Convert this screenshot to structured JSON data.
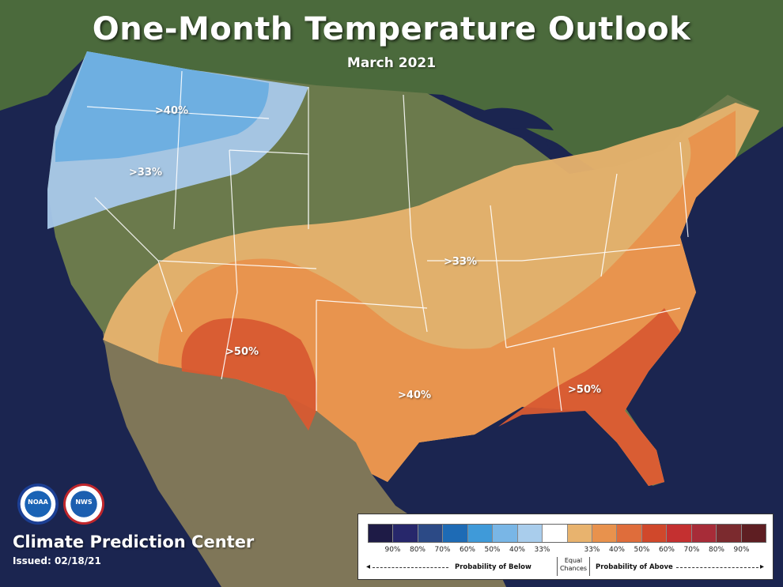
{
  "header": {
    "title": "One-Month Temperature Outlook",
    "subtitle": "March 2021"
  },
  "regions": [
    {
      "id": "below-40",
      "label": ">40%"
    },
    {
      "id": "below-33",
      "label": ">33%"
    },
    {
      "id": "above-33",
      "label": ">33%"
    },
    {
      "id": "above-50-sw",
      "label": ">50%"
    },
    {
      "id": "above-40-tx",
      "label": ">40%"
    },
    {
      "id": "above-50-se",
      "label": ">50%"
    }
  ],
  "colors": {
    "ocean": "#1b2550",
    "land_north": "#4a6b3a",
    "land_south": "#8a8060",
    "below_40": "#6aaee0",
    "below_33": "#a9c9ea",
    "above_33": "#e8b36e",
    "above_40": "#e8924d",
    "above_50": "#d85a32"
  },
  "footer": {
    "org": "Climate Prediction Center",
    "issued": "Issued: 02/18/21",
    "logo_noaa": "NOAA",
    "logo_nws": "NWS"
  },
  "legend": {
    "swatch_colors": [
      "#1e1b46",
      "#27276b",
      "#2c4a86",
      "#1e6bb5",
      "#3f9ad9",
      "#79b6e6",
      "#a9cdec",
      "#ffffff",
      "#e8b36e",
      "#e8924d",
      "#df6d3b",
      "#d0482b",
      "#c43030",
      "#a72c38",
      "#7b2a2e",
      "#5e1e22"
    ],
    "ticks": [
      "90%",
      "80%",
      "70%",
      "60%",
      "50%",
      "40%",
      "33%",
      "",
      "33%",
      "40%",
      "50%",
      "60%",
      "70%",
      "80%",
      "90%"
    ],
    "below_label": "Probability of Below",
    "above_label": "Probability of Above",
    "equal_chances_line1": "Equal",
    "equal_chances_line2": "Chances"
  }
}
